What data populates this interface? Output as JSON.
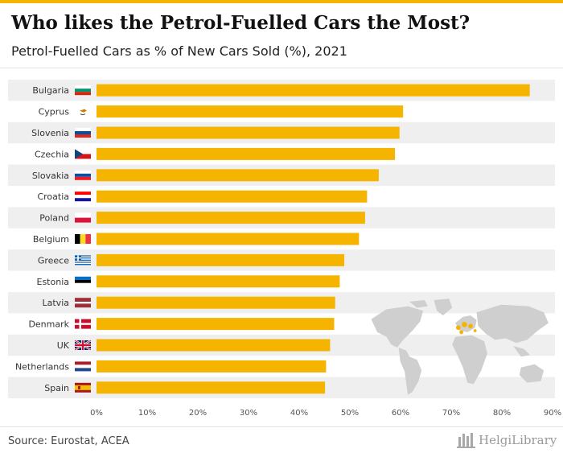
{
  "title": "Who likes the Petrol-Fuelled Cars the Most?",
  "subtitle": "Petrol-Fuelled Cars as % of New Cars Sold (%), 2021",
  "source": "Source: Eurostat, ACEA",
  "logo_text": "HelgiLibrary",
  "colors": {
    "bar": "#f5b400",
    "band": "#efefef",
    "accent": "#f5b400",
    "map": "#cfcfcf"
  },
  "chart_data": {
    "type": "bar",
    "orientation": "horizontal",
    "title": "Who likes the Petrol-Fuelled Cars the Most?",
    "subtitle": "Petrol-Fuelled Cars as % of New Cars Sold (%), 2021",
    "xlabel": "",
    "ylabel": "",
    "xlim": [
      0,
      90
    ],
    "ticks": [
      "0%",
      "10%",
      "20%",
      "30%",
      "40%",
      "50%",
      "60%",
      "70%",
      "80%",
      "90%"
    ],
    "grid": false,
    "categories": [
      "Bulgaria",
      "Cyprus",
      "Slovenia",
      "Czechia",
      "Slovakia",
      "Croatia",
      "Poland",
      "Belgium",
      "Greece",
      "Estonia",
      "Latvia",
      "Denmark",
      "UK",
      "Netherlands",
      "Spain"
    ],
    "values": [
      85.5,
      60.5,
      59.8,
      58.9,
      55.7,
      53.4,
      53.0,
      51.8,
      48.9,
      48.0,
      47.1,
      46.9,
      46.1,
      45.3,
      45.1
    ]
  }
}
